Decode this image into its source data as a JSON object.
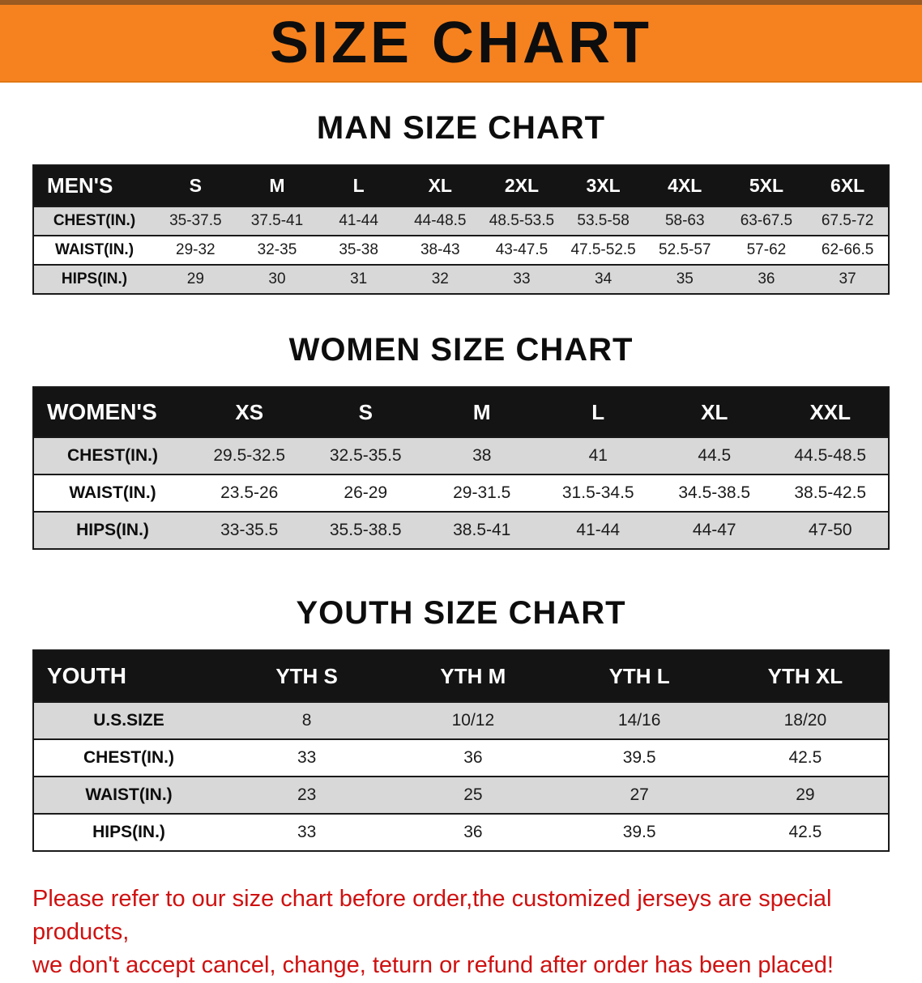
{
  "banner": {
    "title": "SIZE CHART"
  },
  "colors": {
    "banner_bg": "#f6821f",
    "table_header_bg": "#141414",
    "row_alt_gray": "#d8d8d8",
    "note_red": "#cf1110"
  },
  "sections": [
    {
      "id": "men",
      "heading": "MAN SIZE CHART",
      "table": {
        "header": [
          "MEN'S",
          "S",
          "M",
          "L",
          "XL",
          "2XL",
          "3XL",
          "4XL",
          "5XL",
          "6XL"
        ],
        "rows": [
          [
            "CHEST(IN.)",
            "35-37.5",
            "37.5-41",
            "41-44",
            "44-48.5",
            "48.5-53.5",
            "53.5-58",
            "58-63",
            "63-67.5",
            "67.5-72"
          ],
          [
            "WAIST(IN.)",
            "29-32",
            "32-35",
            "35-38",
            "38-43",
            "43-47.5",
            "47.5-52.5",
            "52.5-57",
            "57-62",
            "62-66.5"
          ],
          [
            "HIPS(IN.)",
            "29",
            "30",
            "31",
            "32",
            "33",
            "34",
            "35",
            "36",
            "37"
          ]
        ]
      }
    },
    {
      "id": "women",
      "heading": "WOMEN SIZE CHART",
      "table": {
        "header": [
          "WOMEN'S",
          "XS",
          "S",
          "M",
          "L",
          "XL",
          "XXL"
        ],
        "rows": [
          [
            "CHEST(IN.)",
            "29.5-32.5",
            "32.5-35.5",
            "38",
            "41",
            "44.5",
            "44.5-48.5"
          ],
          [
            "WAIST(IN.)",
            "23.5-26",
            "26-29",
            "29-31.5",
            "31.5-34.5",
            "34.5-38.5",
            "38.5-42.5"
          ],
          [
            "HIPS(IN.)",
            "33-35.5",
            "35.5-38.5",
            "38.5-41",
            "41-44",
            "44-47",
            "47-50"
          ]
        ]
      }
    },
    {
      "id": "youth",
      "heading": "YOUTH SIZE CHART",
      "table": {
        "header": [
          "YOUTH",
          "YTH S",
          "YTH M",
          "YTH L",
          "YTH XL"
        ],
        "rows": [
          [
            "U.S.SIZE",
            "8",
            "10/12",
            "14/16",
            "18/20"
          ],
          [
            "CHEST(IN.)",
            "33",
            "36",
            "39.5",
            "42.5"
          ],
          [
            "WAIST(IN.)",
            "23",
            "25",
            "27",
            "29"
          ],
          [
            "HIPS(IN.)",
            "33",
            "36",
            "39.5",
            "42.5"
          ]
        ]
      }
    }
  ],
  "note": {
    "line1": "Please refer to our size chart before order,the customized jerseys are special products,",
    "line2": "we don't accept cancel, change, teturn or refund after order has been placed!"
  }
}
